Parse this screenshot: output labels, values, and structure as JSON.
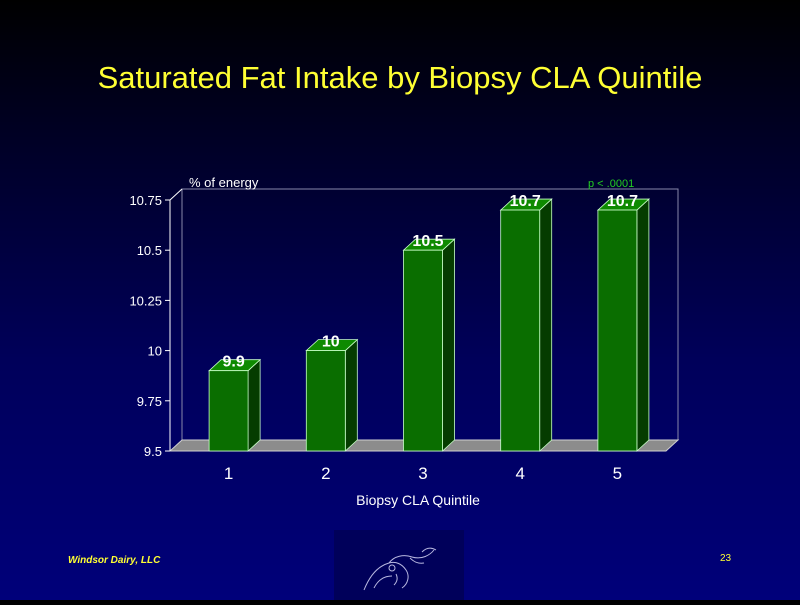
{
  "slide": {
    "title": "Saturated Fat Intake by Biopsy CLA Quintile",
    "footer_left": "Windsor Dairy, LLC",
    "page_number": "23",
    "logo_icon": "cow-sketch-icon"
  },
  "colors": {
    "title": "#ffff33",
    "bar_front": "#0a6e00",
    "bar_side": "#053c00",
    "bar_top": "#0e8a00",
    "floor": "#8c8c8c",
    "annotation": "#22cc22",
    "axis_text": "#ffffff"
  },
  "chart_data": {
    "type": "bar",
    "categories": [
      "1",
      "2",
      "3",
      "4",
      "5"
    ],
    "values": [
      9.9,
      10,
      10.5,
      10.7,
      10.7
    ],
    "data_labels": [
      "9.9",
      "10",
      "10.5",
      "10.7",
      "10.7"
    ],
    "y_ticks": [
      "9.5",
      "9.75",
      "10",
      "10.25",
      "10.5",
      "10.75"
    ],
    "ylim": [
      9.5,
      10.75
    ],
    "ylabel": "% of energy",
    "xlabel": "Biopsy CLA Quintile",
    "annotation": "p < .0001",
    "style": "3d-column",
    "grid": false,
    "legend": false
  }
}
